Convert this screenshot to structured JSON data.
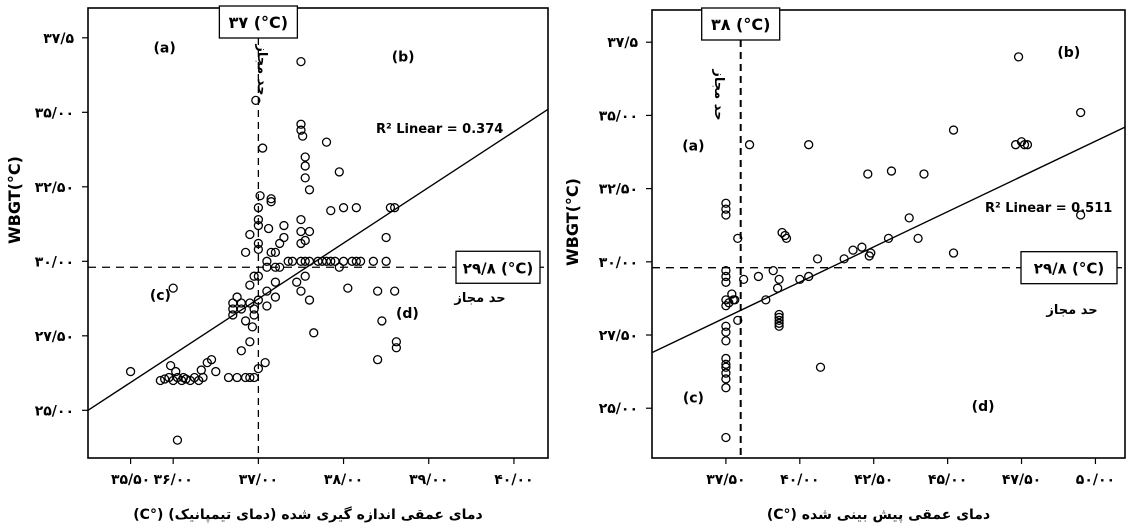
{
  "chart_data": [
    {
      "type": "scatter",
      "xlabel": "دمای عمقی اندازه گیری شده (دمای تیمپانیک) (°C)",
      "ylabel": "WBGT(°C)",
      "x_ticks": [
        {
          "v": 35.5,
          "label": "۳۵/۵۰"
        },
        {
          "v": 36.0,
          "label": "۳۶/۰۰"
        },
        {
          "v": 37.0,
          "label": "۳۷/۰۰"
        },
        {
          "v": 38.0,
          "label": "۳۸/۰۰"
        },
        {
          "v": 39.0,
          "label": "۳۹/۰۰"
        },
        {
          "v": 40.0,
          "label": "۴۰/۰۰"
        }
      ],
      "y_ticks": [
        {
          "v": 25.0,
          "label": "۲۵/۰۰"
        },
        {
          "v": 27.5,
          "label": "۲۷/۵۰"
        },
        {
          "v": 30.0,
          "label": "۳۰/۰۰"
        },
        {
          "v": 32.5,
          "label": "۳۲/۵۰"
        },
        {
          "v": 35.0,
          "label": "۳۵/۰۰"
        },
        {
          "v": 37.5,
          "label": "۳۷/۵"
        }
      ],
      "xlim": [
        35.0,
        40.4
      ],
      "ylim": [
        23.4,
        38.5
      ],
      "vline": {
        "x": 37.0,
        "label": "۳۷ (°C)",
        "side_label": "حد مجاز"
      },
      "hline": {
        "y": 29.8,
        "label": "۲۹/۸ (°C)",
        "side_label": "حد مجاز"
      },
      "fit_line": {
        "x": [
          35.0,
          40.4
        ],
        "y": [
          25.0,
          35.1
        ]
      },
      "r2_label": "R² Linear = 0.374",
      "quadrant_labels": [
        {
          "text": "(a)",
          "x": 35.9,
          "y": 37.0
        },
        {
          "text": "(b)",
          "x": 38.7,
          "y": 36.7
        },
        {
          "text": "(c)",
          "x": 35.85,
          "y": 28.7
        },
        {
          "text": "(d)",
          "x": 38.75,
          "y": 28.1
        }
      ],
      "points": [
        [
          35.5,
          26.3
        ],
        [
          35.85,
          26.0
        ],
        [
          35.9,
          26.05
        ],
        [
          35.95,
          26.1
        ],
        [
          35.97,
          26.5
        ],
        [
          36.0,
          26.0
        ],
        [
          36.03,
          26.3
        ],
        [
          36.05,
          26.1
        ],
        [
          36.1,
          26.0
        ],
        [
          36.12,
          26.1
        ],
        [
          36.15,
          26.05
        ],
        [
          36.2,
          26.0
        ],
        [
          36.25,
          26.1
        ],
        [
          36.3,
          26.0
        ],
        [
          36.33,
          26.35
        ],
        [
          36.35,
          26.1
        ],
        [
          36.4,
          26.6
        ],
        [
          36.45,
          26.7
        ],
        [
          36.5,
          26.3
        ],
        [
          36.05,
          24.0
        ],
        [
          36.0,
          29.1
        ],
        [
          36.65,
          26.1
        ],
        [
          36.7,
          28.2
        ],
        [
          36.7,
          28.4
        ],
        [
          36.7,
          28.6
        ],
        [
          36.75,
          26.1
        ],
        [
          36.75,
          28.8
        ],
        [
          36.8,
          28.4
        ],
        [
          36.8,
          28.6
        ],
        [
          36.85,
          26.1
        ],
        [
          36.85,
          28.0
        ],
        [
          36.9,
          26.1
        ],
        [
          36.9,
          27.3
        ],
        [
          36.9,
          28.6
        ],
        [
          36.9,
          29.2
        ],
        [
          36.93,
          27.8
        ],
        [
          36.95,
          26.1
        ],
        [
          36.95,
          28.2
        ],
        [
          36.95,
          28.4
        ],
        [
          36.95,
          29.5
        ],
        [
          36.97,
          35.4
        ],
        [
          37.0,
          26.4
        ],
        [
          37.0,
          28.7
        ],
        [
          37.0,
          29.5
        ],
        [
          37.0,
          30.4
        ],
        [
          37.0,
          31.2
        ],
        [
          37.0,
          31.4
        ],
        [
          37.02,
          32.2
        ],
        [
          37.05,
          33.8
        ],
        [
          37.08,
          26.6
        ],
        [
          37.1,
          28.5
        ],
        [
          37.1,
          29.0
        ],
        [
          37.1,
          29.8
        ],
        [
          37.1,
          30.0
        ],
        [
          37.12,
          31.1
        ],
        [
          37.15,
          30.3
        ],
        [
          37.15,
          32.0
        ],
        [
          37.15,
          32.1
        ],
        [
          37.2,
          28.8
        ],
        [
          37.2,
          29.3
        ],
        [
          37.2,
          29.8
        ],
        [
          37.25,
          30.6
        ],
        [
          37.3,
          30.8
        ],
        [
          37.35,
          30.0
        ],
        [
          37.4,
          30.0
        ],
        [
          37.45,
          29.3
        ],
        [
          37.5,
          29.0
        ],
        [
          37.5,
          30.0
        ],
        [
          37.5,
          30.6
        ],
        [
          37.5,
          31.0
        ],
        [
          37.5,
          31.4
        ],
        [
          37.52,
          34.2
        ],
        [
          37.55,
          29.5
        ],
        [
          37.55,
          30.0
        ],
        [
          37.55,
          30.7
        ],
        [
          37.55,
          33.2
        ],
        [
          37.55,
          33.5
        ],
        [
          37.6,
          30.0
        ],
        [
          37.6,
          31.0
        ],
        [
          37.65,
          27.6
        ],
        [
          37.7,
          30.0
        ],
        [
          37.75,
          30.0
        ],
        [
          37.8,
          30.0
        ],
        [
          37.85,
          30.0
        ],
        [
          37.85,
          31.7
        ],
        [
          37.9,
          30.0
        ],
        [
          37.95,
          33.0
        ],
        [
          38.0,
          31.8
        ],
        [
          38.0,
          30.0
        ],
        [
          38.05,
          29.1
        ],
        [
          38.1,
          30.0
        ],
        [
          38.15,
          31.8
        ],
        [
          38.15,
          30.0
        ],
        [
          38.5,
          30.8
        ],
        [
          38.55,
          31.8
        ],
        [
          38.6,
          31.8
        ],
        [
          38.62,
          27.1
        ],
        [
          38.62,
          27.3
        ],
        [
          38.35,
          30.0
        ],
        [
          38.4,
          29.0
        ],
        [
          38.4,
          26.7
        ],
        [
          37.5,
          36.7
        ],
        [
          37.5,
          34.6
        ],
        [
          37.5,
          34.4
        ],
        [
          37.55,
          32.8
        ],
        [
          37.6,
          32.4
        ],
        [
          37.8,
          34.0
        ],
        [
          38.2,
          30.0
        ],
        [
          38.5,
          30.0
        ],
        [
          37.3,
          31.2
        ],
        [
          37.0,
          31.8
        ],
        [
          36.8,
          27.0
        ],
        [
          37.2,
          30.3
        ],
        [
          37.25,
          29.8
        ],
        [
          37.6,
          28.7
        ],
        [
          38.45,
          28.0
        ],
        [
          38.6,
          29.0
        ],
        [
          37.95,
          29.8
        ],
        [
          37.0,
          30.6
        ],
        [
          36.9,
          30.9
        ],
        [
          36.85,
          30.3
        ]
      ]
    },
    {
      "type": "scatter",
      "xlabel": "دمای عمقی پیش بینی شده (°C)",
      "ylabel": "WBGT(°C)",
      "x_ticks": [
        {
          "v": 37.5,
          "label": "۳۷/۵۰"
        },
        {
          "v": 40.0,
          "label": "۴۰/۰۰"
        },
        {
          "v": 42.5,
          "label": "۴۲/۵۰"
        },
        {
          "v": 45.0,
          "label": "۴۵/۰۰"
        },
        {
          "v": 47.5,
          "label": "۴۷/۵۰"
        },
        {
          "v": 50.0,
          "label": "۵۰/۰۰"
        }
      ],
      "y_ticks": [
        {
          "v": 25.0,
          "label": "۲۵/۰۰"
        },
        {
          "v": 27.5,
          "label": "۲۷/۵۰"
        },
        {
          "v": 30.0,
          "label": "۳۰/۰۰"
        },
        {
          "v": 32.5,
          "label": "۳۲/۵۰"
        },
        {
          "v": 35.0,
          "label": "۳۵/۰۰"
        },
        {
          "v": 37.5,
          "label": "۳۷/۵"
        }
      ],
      "xlim": [
        35.0,
        51.0
      ],
      "ylim": [
        23.3,
        38.6
      ],
      "vline": {
        "x": 38.0,
        "label": "۳۸ (°C)",
        "side_label": "حد مجاز"
      },
      "hline": {
        "y": 29.8,
        "label": "۲۹/۸ (°C)",
        "side_label": "حد مجاز"
      },
      "fit_line": {
        "x": [
          35.0,
          51.0
        ],
        "y": [
          26.9,
          34.6
        ]
      },
      "r2_label": "R² Linear = 0.511",
      "quadrant_labels": [
        {
          "text": "(a)",
          "x": 36.4,
          "y": 33.8
        },
        {
          "text": "(b)",
          "x": 49.1,
          "y": 37.0
        },
        {
          "text": "(c)",
          "x": 36.4,
          "y": 25.2
        },
        {
          "text": "(d)",
          "x": 46.2,
          "y": 24.9
        }
      ],
      "points": [
        [
          37.5,
          24.0
        ],
        [
          37.5,
          25.7
        ],
        [
          37.5,
          26.0
        ],
        [
          37.5,
          26.2
        ],
        [
          37.5,
          26.4
        ],
        [
          37.5,
          26.5
        ],
        [
          37.5,
          26.7
        ],
        [
          37.5,
          27.3
        ],
        [
          37.5,
          27.6
        ],
        [
          37.5,
          27.8
        ],
        [
          37.5,
          28.5
        ],
        [
          37.5,
          28.7
        ],
        [
          37.5,
          29.3
        ],
        [
          37.5,
          29.5
        ],
        [
          37.5,
          29.7
        ],
        [
          37.5,
          31.6
        ],
        [
          37.5,
          31.8
        ],
        [
          37.5,
          32.0
        ],
        [
          37.6,
          28.6
        ],
        [
          37.7,
          28.9
        ],
        [
          37.75,
          28.7
        ],
        [
          37.8,
          28.7
        ],
        [
          37.9,
          28.0
        ],
        [
          37.9,
          30.8
        ],
        [
          38.1,
          29.4
        ],
        [
          38.3,
          34.0
        ],
        [
          38.6,
          29.5
        ],
        [
          38.85,
          28.7
        ],
        [
          39.1,
          29.7
        ],
        [
          39.25,
          29.1
        ],
        [
          39.3,
          29.4
        ],
        [
          39.3,
          28.2
        ],
        [
          39.3,
          28.0
        ],
        [
          39.3,
          27.9
        ],
        [
          39.3,
          27.8
        ],
        [
          39.4,
          31.0
        ],
        [
          39.5,
          30.9
        ],
        [
          39.55,
          30.8
        ],
        [
          40.0,
          29.4
        ],
        [
          40.3,
          34.0
        ],
        [
          40.6,
          30.1
        ],
        [
          40.7,
          26.4
        ],
        [
          41.5,
          30.1
        ],
        [
          41.8,
          30.4
        ],
        [
          42.1,
          30.5
        ],
        [
          42.3,
          33.0
        ],
        [
          42.35,
          30.2
        ],
        [
          42.4,
          30.3
        ],
        [
          43.0,
          30.8
        ],
        [
          43.1,
          33.1
        ],
        [
          43.7,
          31.5
        ],
        [
          44.0,
          30.8
        ],
        [
          44.2,
          33.0
        ],
        [
          45.2,
          30.3
        ],
        [
          45.2,
          34.5
        ],
        [
          47.3,
          34.0
        ],
        [
          47.4,
          37.0
        ],
        [
          47.5,
          34.1
        ],
        [
          47.6,
          34.0
        ],
        [
          47.7,
          34.0
        ],
        [
          49.5,
          35.1
        ],
        [
          49.5,
          31.6
        ],
        [
          39.3,
          28.1
        ],
        [
          40.3,
          29.5
        ]
      ]
    }
  ]
}
